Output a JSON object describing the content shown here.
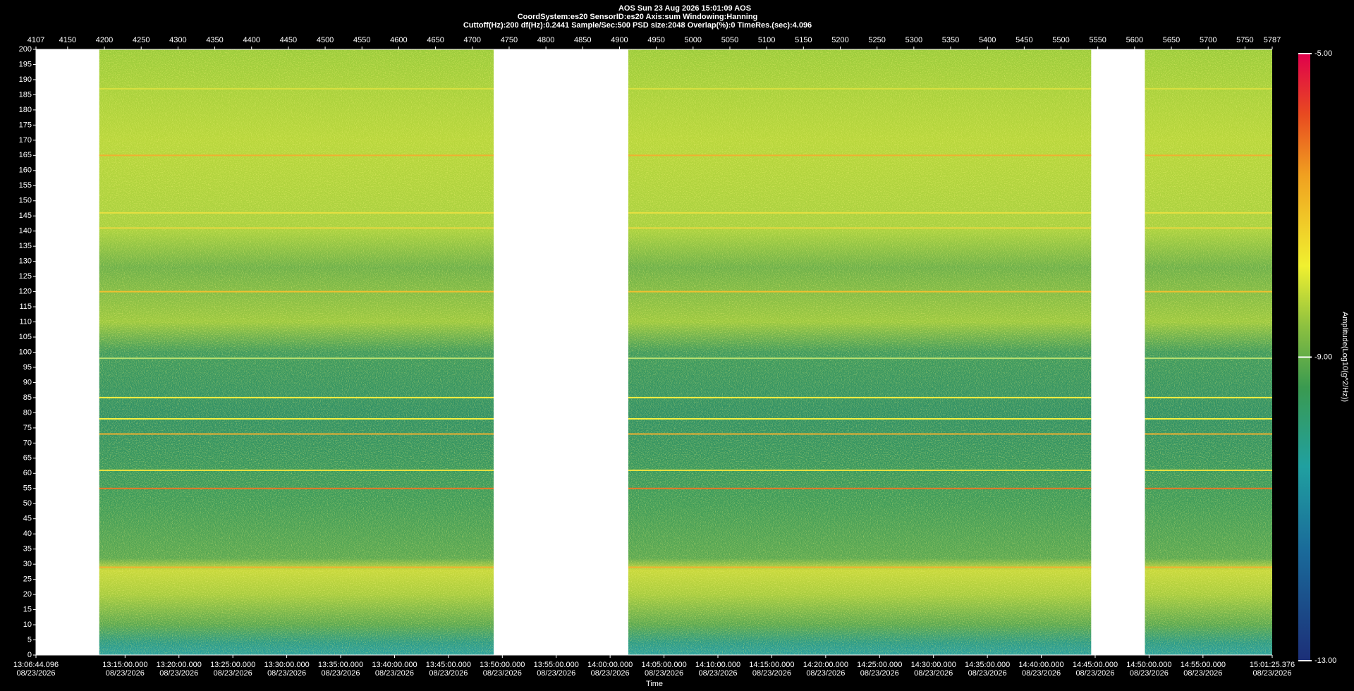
{
  "chart_data": {
    "type": "spectrogram",
    "title": "AOS  Sun 23 Aug 2026 15:01:09  AOS",
    "subtitle": "CoordSystem:es20   SensorID:es20   Axis:sum   Windowing:Hanning",
    "parameters": "Cuttoff(Hz):200    df(Hz):0.2441    Sample/Sec:500    PSD size:2048    Overlap(%):0    TimeRes.(sec):4.096",
    "xlabel": "Time",
    "ylim": [
      0,
      200
    ],
    "yticks": [
      0,
      5,
      10,
      15,
      20,
      25,
      30,
      35,
      40,
      45,
      50,
      55,
      60,
      65,
      70,
      75,
      80,
      85,
      90,
      95,
      100,
      105,
      110,
      115,
      120,
      125,
      130,
      135,
      140,
      145,
      150,
      155,
      160,
      165,
      170,
      175,
      180,
      185,
      190,
      195,
      200
    ],
    "x2lim": [
      4107,
      5787
    ],
    "x2ticks": [
      4107,
      4150,
      4200,
      4250,
      4300,
      4350,
      4400,
      4450,
      4500,
      4550,
      4600,
      4650,
      4700,
      4750,
      4800,
      4850,
      4900,
      4950,
      5000,
      5050,
      5100,
      5150,
      5200,
      5250,
      5300,
      5350,
      5400,
      5450,
      5500,
      5550,
      5600,
      5650,
      5700,
      5750,
      5787
    ],
    "xlim": [
      47204.096,
      54085.376
    ],
    "xticks": [
      {
        "value": 47204.096,
        "label": "13:06:44.096"
      },
      {
        "value": 47700,
        "label": "13:15:00.000"
      },
      {
        "value": 48000,
        "label": "13:20:00.000"
      },
      {
        "value": 48300,
        "label": "13:25:00.000"
      },
      {
        "value": 48600,
        "label": "13:30:00.000"
      },
      {
        "value": 48900,
        "label": "13:35:00.000"
      },
      {
        "value": 49200,
        "label": "13:40:00.000"
      },
      {
        "value": 49500,
        "label": "13:45:00.000"
      },
      {
        "value": 49800,
        "label": "13:50:00.000"
      },
      {
        "value": 50100,
        "label": "13:55:00.000"
      },
      {
        "value": 50400,
        "label": "14:00:00.000"
      },
      {
        "value": 50700,
        "label": "14:05:00.000"
      },
      {
        "value": 51000,
        "label": "14:10:00.000"
      },
      {
        "value": 51300,
        "label": "14:15:00.000"
      },
      {
        "value": 51600,
        "label": "14:20:00.000"
      },
      {
        "value": 51900,
        "label": "14:25:00.000"
      },
      {
        "value": 52200,
        "label": "14:30:00.000"
      },
      {
        "value": 52500,
        "label": "14:35:00.000"
      },
      {
        "value": 52800,
        "label": "14:40:00.000"
      },
      {
        "value": 53100,
        "label": "14:45:00.000"
      },
      {
        "value": 53400,
        "label": "14:50:00.000"
      },
      {
        "value": 53700,
        "label": "14:55:00.000"
      },
      {
        "value": 54085.376,
        "label": "15:01:25.376"
      }
    ],
    "xtick_dates": [
      "08/23/2026",
      "08/23/2026",
      "08/23/2026",
      "08/23/2026",
      "08/23/2026",
      "08/23/2026",
      "08/23/2026",
      "08/23/2026",
      "08/23/2026",
      "08/23/2026",
      "08/23/2026",
      "08/23/2026",
      "08/23/2026",
      "08/23/2026",
      "08/23/2026",
      "08/23/2026",
      "08/23/2026",
      "08/23/2026",
      "08/23/2026",
      "08/23/2026",
      "08/23/2026",
      "08/23/2026",
      "08/23/2026"
    ],
    "segments": [
      [
        4193,
        4729
      ],
      [
        4912,
        5541
      ],
      [
        5614,
        5787
      ]
    ],
    "lines": [
      {
        "freq": 187,
        "color": "#d8e040"
      },
      {
        "freq": 165,
        "color": "#f0b030"
      },
      {
        "freq": 146,
        "color": "#e8e040"
      },
      {
        "freq": 141,
        "color": "#e8d840"
      },
      {
        "freq": 120,
        "color": "#f0c030"
      },
      {
        "freq": 98,
        "color": "#b8e070"
      },
      {
        "freq": 85,
        "color": "#f8f040"
      },
      {
        "freq": 78,
        "color": "#f8f040"
      },
      {
        "freq": 73,
        "color": "#f0b030"
      },
      {
        "freq": 61,
        "color": "#e8e040"
      },
      {
        "freq": 55,
        "color": "#e87828"
      },
      {
        "freq": 29,
        "color": "#f0b030"
      }
    ],
    "colorbar_label": "Amplitude(Log10(g^2/Hz))",
    "clim": [
      -13,
      -5
    ],
    "cticks": [
      {
        "value": -13,
        "label": "-13.00"
      },
      {
        "value": -9,
        "label": "-9.00"
      },
      {
        "value": -5,
        "label": "-5.00"
      }
    ]
  }
}
